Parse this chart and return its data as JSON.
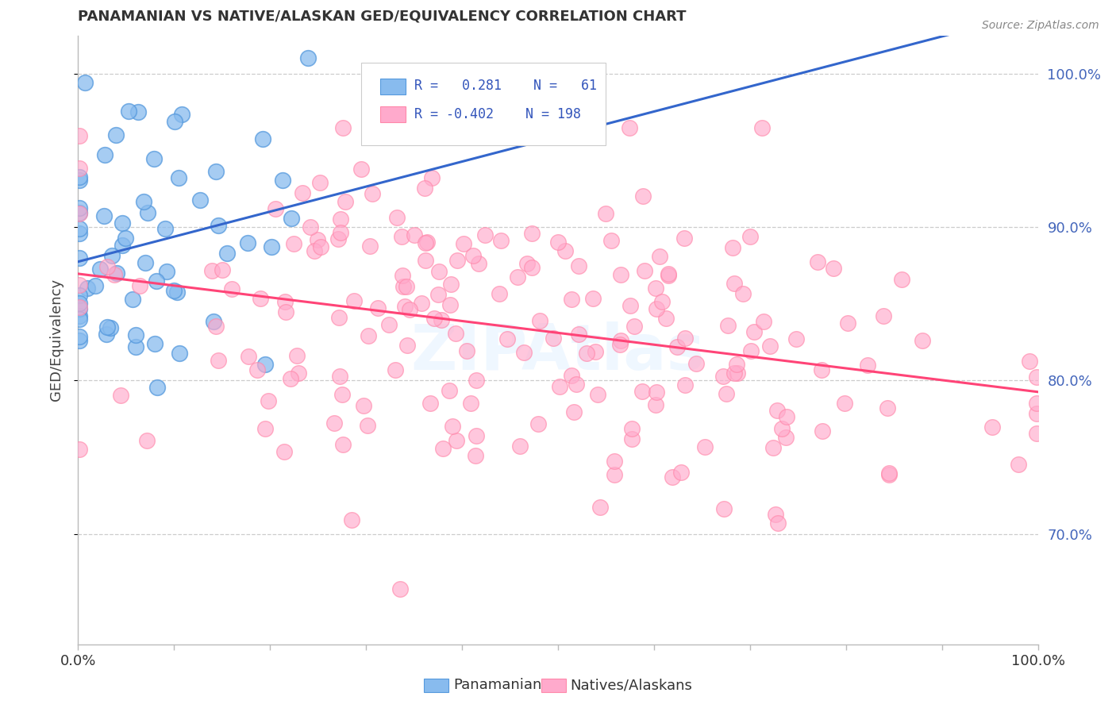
{
  "title": "PANAMANIAN VS NATIVE/ALASKAN GED/EQUIVALENCY CORRELATION CHART",
  "source": "Source: ZipAtlas.com",
  "ylabel": "GED/Equivalency",
  "blue_color": "#88BBEE",
  "pink_color": "#FFAACC",
  "line_blue": "#3366CC",
  "line_pink": "#FF4477",
  "watermark": "ZIPAtlas",
  "background": "#FFFFFF",
  "legend_label1": "Panamanians",
  "legend_label2": "Natives/Alaskans",
  "n_blue": 61,
  "n_pink": 198,
  "R_blue": 0.281,
  "R_pink": -0.402,
  "xmin": 0.0,
  "xmax": 1.0,
  "ymin": 0.628,
  "ymax": 1.025,
  "right_yticks": [
    0.7,
    0.8,
    0.9,
    1.0
  ],
  "right_yticklabels": [
    "70.0%",
    "80.0%",
    "90.0%",
    "100.0%"
  ]
}
